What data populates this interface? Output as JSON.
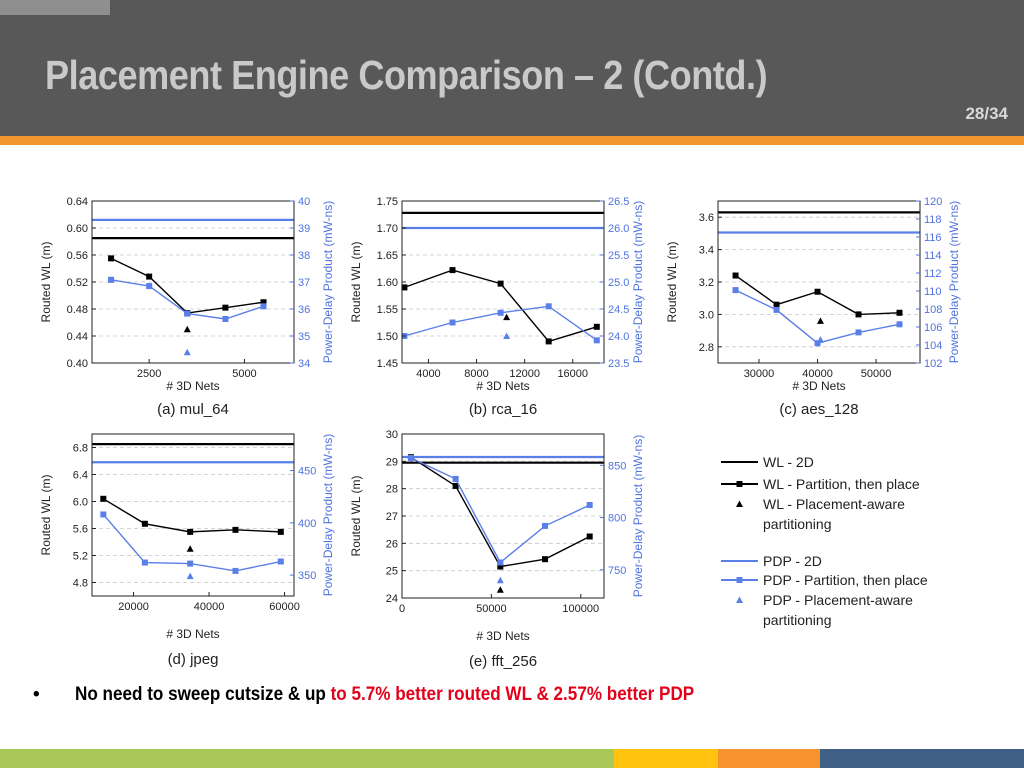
{
  "slide": {
    "title": "Placement Engine Comparison – 2 (Contd.)",
    "page": "28/34",
    "bullet_marker": "•",
    "bullet_black": "No need to sweep cutsize & up ",
    "bullet_red": "to 5.7% better routed WL & 2.57% better PDP"
  },
  "colors": {
    "wl": "#000000",
    "pdp": "#5b7fe8",
    "pdp_axis": "#4f73e0",
    "header": "#585858",
    "accent": "#f0962e"
  },
  "legend": [
    {
      "label": "WL - 2D",
      "color": "#000000",
      "style": "line"
    },
    {
      "label": "WL - Partition, then place",
      "color": "#000000",
      "style": "line-square"
    },
    {
      "label": "WL - Placement-aware",
      "label2": "partitioning",
      "color": "#000000",
      "style": "triangle"
    },
    {
      "label": "PDP - 2D",
      "color": "#5b7fe8",
      "style": "line"
    },
    {
      "label": "PDP - Partition, then place",
      "color": "#5b7fe8",
      "style": "line-square"
    },
    {
      "label": "PDP - Placement-aware",
      "label2": "partitioning",
      "color": "#5b7fe8",
      "style": "triangle"
    }
  ],
  "chart_data": [
    {
      "type": "line",
      "caption": "(a) mul_64",
      "xlabel": "# 3D Nets",
      "ylabel": "Routed WL (m)",
      "y2label": "Power-Delay Product (mW-ns)",
      "xlim": [
        1000,
        6300
      ],
      "xticks": [
        2500,
        5000
      ],
      "ylim": [
        0.4,
        0.64
      ],
      "yticks": [
        0.4,
        0.44,
        0.48,
        0.52,
        0.56,
        0.6,
        0.64
      ],
      "y2lim": [
        34,
        40
      ],
      "y2ticks": [
        34,
        35,
        36,
        37,
        38,
        39,
        40
      ],
      "wl_2d": 0.585,
      "pdp_2d": 39.3,
      "wl_partition": {
        "x": [
          1500,
          2500,
          3500,
          4500,
          5500
        ],
        "y": [
          0.555,
          0.528,
          0.474,
          0.482,
          0.49
        ]
      },
      "pdp_partition": {
        "x": [
          1500,
          2500,
          3500,
          4500,
          5500
        ],
        "y": [
          37.08,
          36.85,
          35.83,
          35.63,
          36.1
        ]
      },
      "wl_aware": {
        "x": [
          3500
        ],
        "y": [
          0.45
        ]
      },
      "pdp_aware": {
        "x": [
          3500
        ],
        "y": [
          34.4
        ]
      }
    },
    {
      "type": "line",
      "caption": "(b) rca_16",
      "xlabel": "# 3D Nets",
      "ylabel": "Routed WL (m)",
      "y2label": "Power-Delay Product (mW-ns)",
      "xlim": [
        1800,
        18600
      ],
      "xticks": [
        4000,
        8000,
        12000,
        16000
      ],
      "ylim": [
        1.45,
        1.75
      ],
      "yticks": [
        1.45,
        1.5,
        1.55,
        1.6,
        1.65,
        1.7,
        1.75
      ],
      "y2lim": [
        23.5,
        26.5
      ],
      "y2ticks": [
        23.5,
        24.0,
        24.5,
        25.0,
        25.5,
        26.0,
        26.5
      ],
      "wl_2d": 1.728,
      "pdp_2d": 26.0,
      "wl_partition": {
        "x": [
          2000,
          6000,
          10000,
          14000,
          18000
        ],
        "y": [
          1.59,
          1.622,
          1.597,
          1.49,
          1.517
        ]
      },
      "pdp_partition": {
        "x": [
          2000,
          6000,
          10000,
          14000,
          18000
        ],
        "y": [
          24.0,
          24.25,
          24.43,
          24.55,
          23.92
        ]
      },
      "wl_aware": {
        "x": [
          10500
        ],
        "y": [
          1.535
        ]
      },
      "pdp_aware": {
        "x": [
          10500
        ],
        "y": [
          24.0
        ]
      }
    },
    {
      "type": "line",
      "caption": "(c) aes_128",
      "xlabel": "# 3D Nets",
      "ylabel": "Routed WL (m)",
      "y2label": "Power-Delay Product (mW-ns)",
      "xlim": [
        23000,
        57500
      ],
      "xticks": [
        30000,
        40000,
        50000
      ],
      "ylim": [
        2.7,
        3.7
      ],
      "yticks": [
        2.8,
        3.0,
        3.2,
        3.4,
        3.6
      ],
      "y2lim": [
        102,
        120
      ],
      "y2ticks": [
        102,
        104,
        106,
        108,
        110,
        112,
        114,
        116,
        118,
        120
      ],
      "wl_2d": 3.63,
      "pdp_2d": 116.5,
      "wl_partition": {
        "x": [
          26000,
          33000,
          40000,
          47000,
          54000
        ],
        "y": [
          3.24,
          3.06,
          3.14,
          3.0,
          3.01
        ]
      },
      "pdp_partition": {
        "x": [
          26000,
          33000,
          40000,
          47000,
          54000
        ],
        "y": [
          110.1,
          107.9,
          104.2,
          105.4,
          106.3
        ]
      },
      "wl_aware": {
        "x": [
          40500
        ],
        "y": [
          2.96
        ]
      },
      "pdp_aware": {
        "x": [
          40500
        ],
        "y": [
          104.6
        ]
      }
    },
    {
      "type": "line",
      "caption": "(d) jpeg",
      "xlabel": "# 3D Nets",
      "ylabel": "Routed WL (m)",
      "y2label": "Power-Delay Product (mW-ns)",
      "xlim": [
        9000,
        62500
      ],
      "xticks": [
        20000,
        40000,
        60000
      ],
      "ylim": [
        4.6,
        7.0
      ],
      "yticks": [
        4.8,
        5.2,
        5.6,
        6.0,
        6.4,
        6.8
      ],
      "y2lim": [
        330,
        485
      ],
      "y2ticks": [
        350,
        400,
        450
      ],
      "wl_2d": 6.85,
      "pdp_2d": 458,
      "wl_partition": {
        "x": [
          12000,
          23000,
          35000,
          47000,
          59000
        ],
        "y": [
          6.04,
          5.67,
          5.55,
          5.58,
          5.55
        ]
      },
      "pdp_partition": {
        "x": [
          12000,
          23000,
          35000,
          47000,
          59000
        ],
        "y": [
          408,
          362,
          361,
          354,
          363
        ]
      },
      "wl_aware": {
        "x": [
          35000
        ],
        "y": [
          5.3
        ]
      },
      "pdp_aware": {
        "x": [
          35000
        ],
        "y": [
          349
        ]
      }
    },
    {
      "type": "line",
      "caption": "(e) fft_256",
      "xlabel": "# 3D Nets",
      "ylabel": "Routed WL (m)",
      "y2label": "Power-Delay Product (mW-ns)",
      "xlim": [
        0,
        113000
      ],
      "xticks": [
        0,
        50000,
        100000
      ],
      "ylim": [
        24,
        30
      ],
      "yticks": [
        24,
        25,
        26,
        27,
        28,
        29,
        30
      ],
      "y2lim": [
        723,
        880
      ],
      "y2ticks": [
        750,
        800,
        850
      ],
      "wl_2d": 28.95,
      "pdp_2d": 858,
      "wl_partition": {
        "x": [
          5000,
          30000,
          55000,
          80000,
          105000
        ],
        "y": [
          29.15,
          28.1,
          25.15,
          25.42,
          26.25
        ]
      },
      "pdp_partition": {
        "x": [
          5000,
          30000,
          55000,
          80000,
          105000
        ],
        "y": [
          857,
          837,
          757,
          792,
          812
        ]
      },
      "wl_aware": {
        "x": [
          55000
        ],
        "y": [
          24.3
        ]
      },
      "pdp_aware": {
        "x": [
          55000
        ],
        "y": [
          740
        ]
      }
    }
  ]
}
